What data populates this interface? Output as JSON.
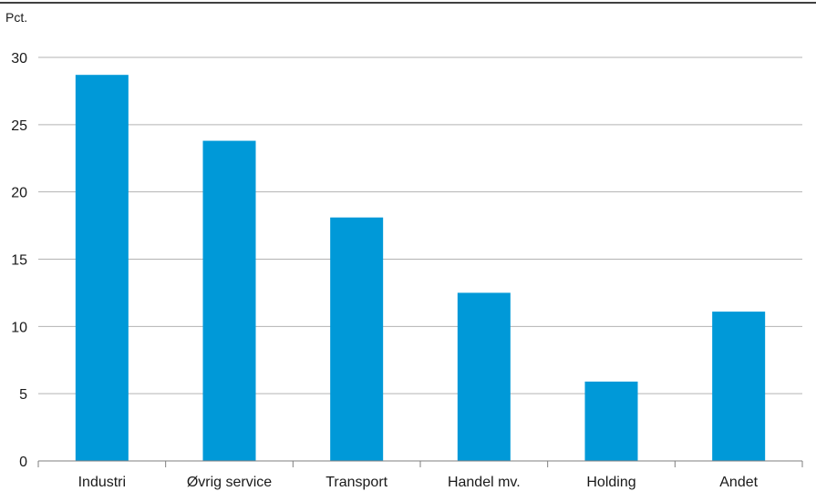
{
  "chart_data": {
    "type": "bar",
    "unit_label": "Pct.",
    "categories": [
      "Industri",
      "Øvrig service",
      "Transport",
      "Handel mv.",
      "Holding",
      "Andet"
    ],
    "values": [
      28.7,
      23.8,
      18.1,
      12.5,
      5.9,
      11.1
    ],
    "ylim": [
      0,
      30
    ],
    "yticks": [
      0,
      5,
      10,
      15,
      20,
      25,
      30
    ],
    "grid": true,
    "legend": "none",
    "colors": {
      "bar": "#0099d8",
      "grid": "#b3b3b3",
      "axis": "#7f7f7f",
      "top_rule": "#000000"
    }
  }
}
